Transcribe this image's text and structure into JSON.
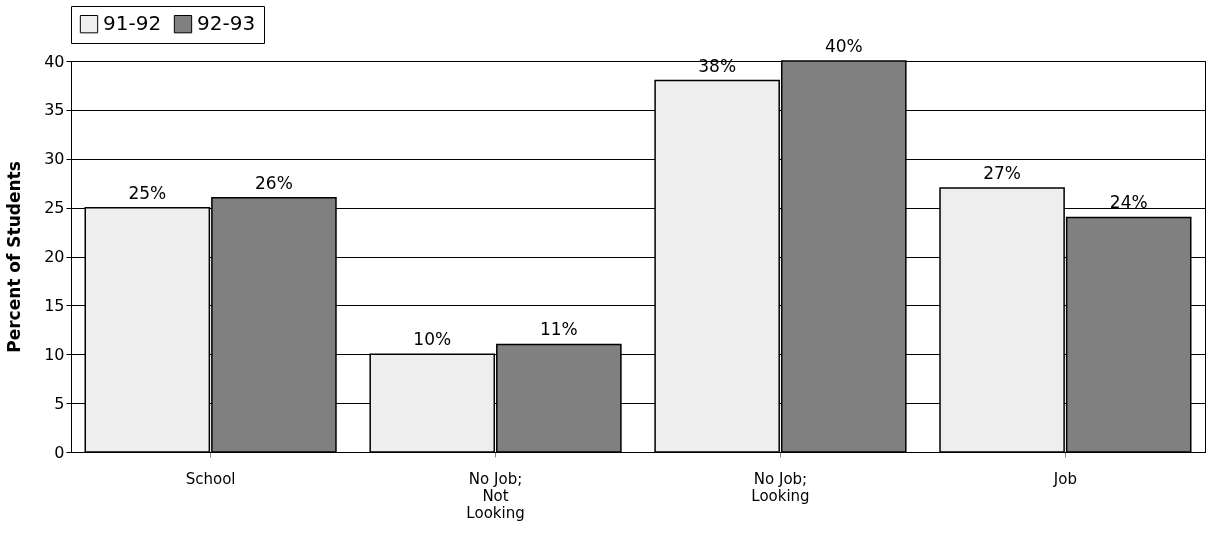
{
  "chart_data": {
    "type": "bar",
    "ylabel": "Percent of Students",
    "categories": [
      "School",
      "No Job;\nNot\nLooking",
      "No Job;\nLooking",
      "Job"
    ],
    "series": [
      {
        "name": "91-92",
        "color": "#eeeeee",
        "values": [
          25,
          10,
          38,
          27
        ],
        "value_labels": [
          "25%",
          "10%",
          "38%",
          "27%"
        ]
      },
      {
        "name": "92-93",
        "color": "#808080",
        "values": [
          26,
          11,
          40,
          24
        ],
        "value_labels": [
          "26%",
          "11%",
          "40%",
          "24%"
        ]
      }
    ],
    "ylim": [
      0,
      40
    ],
    "yticks": [
      0,
      5,
      10,
      15,
      20,
      25,
      30,
      35,
      40
    ],
    "grid": "y",
    "legend": "top"
  }
}
